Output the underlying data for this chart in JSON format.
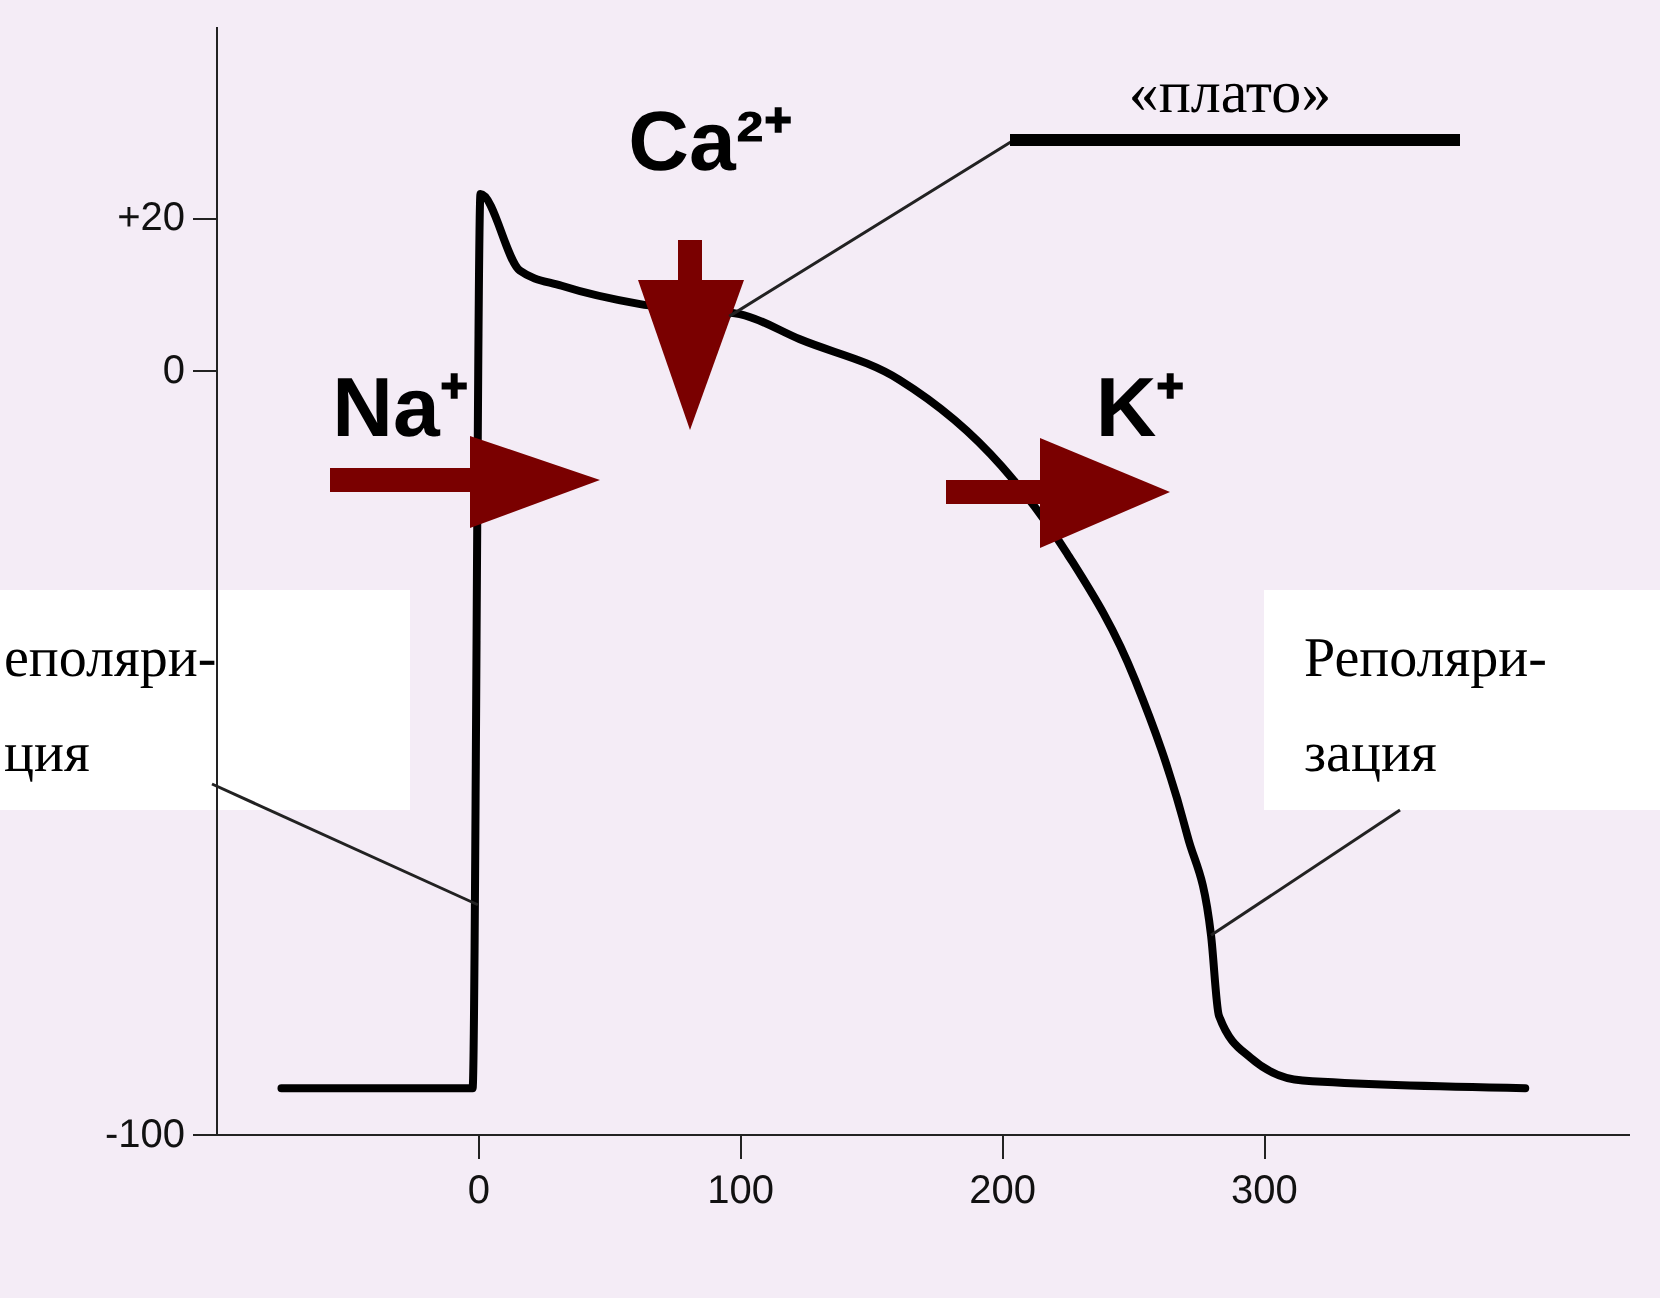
{
  "chart_data": {
    "type": "line",
    "x": [
      -75,
      -2,
      1,
      16,
      32,
      62,
      100,
      123,
      161,
      200,
      225,
      251,
      271,
      280,
      283,
      295,
      315,
      400
    ],
    "series": [
      {
        "color": "#000000",
        "values": [
          -94,
          -94,
          23,
          13,
          11,
          8.6,
          7.3,
          4,
          -1.3,
          -12.6,
          -24,
          -40.6,
          -61,
          -74,
          -84.5,
          -90,
          -93,
          -94
        ]
      }
    ],
    "xlim": [
      -100,
      440
    ],
    "xticks": [
      0,
      100,
      200,
      300
    ],
    "ylim": [
      -100,
      45
    ],
    "yticks": [
      {
        "value": 20,
        "label": "+20"
      },
      0,
      -100
    ],
    "annotations": [
      "Na⁺",
      "Ca²⁺",
      "K⁺",
      {
        "text": "«плато»",
        "x": 96,
        "y": 7
      },
      {
        "text": "еполяри-\nция",
        "x": 0,
        "y": -70
      },
      {
        "text": "Реполяри-\nзация",
        "x": 280,
        "y": -74
      }
    ]
  }
}
